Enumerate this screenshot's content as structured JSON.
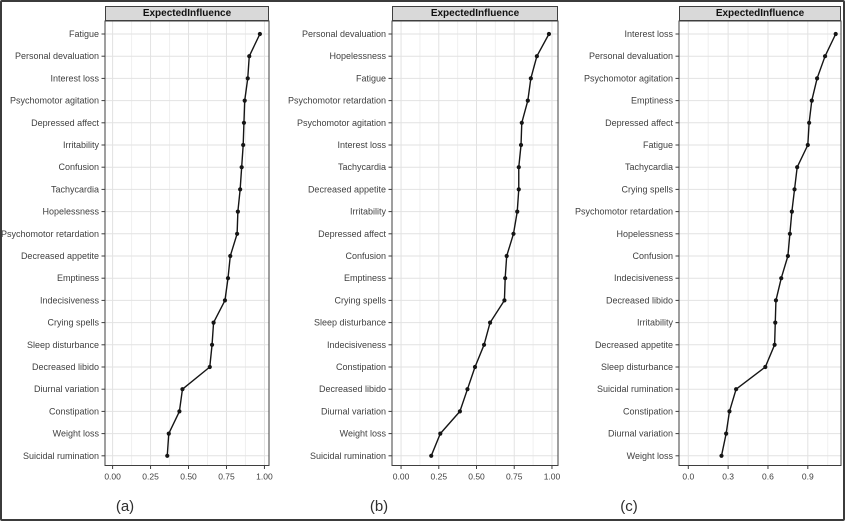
{
  "figure": {
    "strip_label": "ExpectedInfluence",
    "colors": {
      "point_line": "#151515",
      "grid_major": "#e2e2e2",
      "grid_minor": "#f0f0f0",
      "panel_border": "#3f3f3f",
      "axis_text": "#3f3f3f",
      "strip_bg": "#d9d9d9"
    }
  },
  "chart_data": [
    {
      "type": "line",
      "caption": "(a)",
      "title": "ExpectedInfluence",
      "orientation": "horizontal-dot-line",
      "xlim": [
        -0.05,
        1.03
      ],
      "x_ticks": [
        0,
        0.25,
        0.5,
        0.75,
        1.0
      ],
      "x_tick_labels": [
        "0.00",
        "0.25",
        "0.50",
        "0.75",
        "1.00"
      ],
      "x_minor_ticks": [
        0.125,
        0.375,
        0.625,
        0.875
      ],
      "categories": [
        "Fatigue",
        "Personal devaluation",
        "Interest loss",
        "Psychomotor agitation",
        "Depressed affect",
        "Irritability",
        "Confusion",
        "Tachycardia",
        "Hopelessness",
        "Psychomotor retardation",
        "Decreased appetite",
        "Emptiness",
        "Indecisiveness",
        "Crying spells",
        "Sleep disturbance",
        "Decreased libido",
        "Diurnal variation",
        "Constipation",
        "Weight loss",
        "Suicidal rumination"
      ],
      "values": [
        0.97,
        0.9,
        0.89,
        0.87,
        0.865,
        0.86,
        0.85,
        0.84,
        0.825,
        0.82,
        0.775,
        0.76,
        0.74,
        0.665,
        0.655,
        0.64,
        0.46,
        0.44,
        0.37,
        0.36
      ]
    },
    {
      "type": "line",
      "caption": "(b)",
      "title": "ExpectedInfluence",
      "orientation": "horizontal-dot-line",
      "xlim": [
        -0.06,
        1.04
      ],
      "x_ticks": [
        0,
        0.25,
        0.5,
        0.75,
        1.0
      ],
      "x_tick_labels": [
        "0.00",
        "0.25",
        "0.50",
        "0.75",
        "1.00"
      ],
      "x_minor_ticks": [
        0.125,
        0.375,
        0.625,
        0.875
      ],
      "categories": [
        "Personal devaluation",
        "Hopelessness",
        "Fatigue",
        "Psychomotor retardation",
        "Psychomotor agitation",
        "Interest loss",
        "Tachycardia",
        "Decreased appetite",
        "Irritability",
        "Depressed affect",
        "Confusion",
        "Emptiness",
        "Crying spells",
        "Sleep disturbance",
        "Indecisiveness",
        "Constipation",
        "Decreased libido",
        "Diurnal variation",
        "Weight loss",
        "Suicidal rumination"
      ],
      "values": [
        0.98,
        0.9,
        0.86,
        0.84,
        0.8,
        0.795,
        0.78,
        0.78,
        0.77,
        0.745,
        0.7,
        0.69,
        0.685,
        0.59,
        0.55,
        0.49,
        0.44,
        0.39,
        0.26,
        0.2
      ]
    },
    {
      "type": "line",
      "caption": "(c)",
      "title": "ExpectedInfluence",
      "orientation": "horizontal-dot-line",
      "xlim": [
        -0.07,
        1.15
      ],
      "x_ticks": [
        0,
        0.3,
        0.6,
        0.9
      ],
      "x_tick_labels": [
        "0.0",
        "0.3",
        "0.6",
        "0.9"
      ],
      "x_minor_ticks": [
        0.15,
        0.45,
        0.75,
        1.05
      ],
      "categories": [
        "Interest loss",
        "Personal devaluation",
        "Psychomotor agitation",
        "Emptiness",
        "Depressed affect",
        "Fatigue",
        "Tachycardia",
        "Crying spells",
        "Psychomotor retardation",
        "Hopelessness",
        "Confusion",
        "Indecisiveness",
        "Decreased libido",
        "Irritability",
        "Decreased appetite",
        "Sleep disturbance",
        "Suicidal rumination",
        "Constipation",
        "Diurnal variation",
        "Weight loss"
      ],
      "values": [
        1.11,
        1.03,
        0.97,
        0.93,
        0.91,
        0.9,
        0.82,
        0.8,
        0.78,
        0.765,
        0.75,
        0.7,
        0.66,
        0.655,
        0.65,
        0.58,
        0.36,
        0.31,
        0.285,
        0.25
      ]
    }
  ]
}
